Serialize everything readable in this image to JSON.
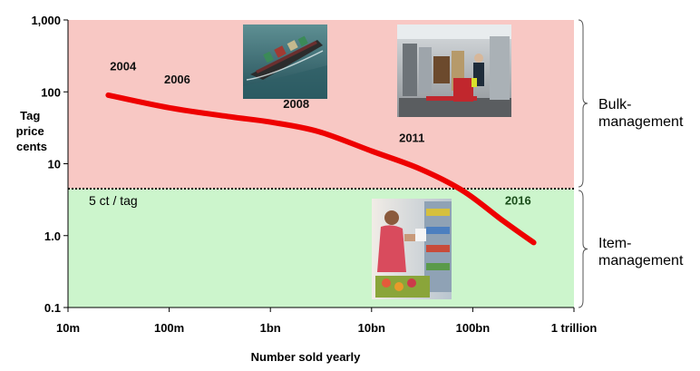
{
  "chart_data": {
    "type": "line",
    "title": "",
    "xlabel": "Number sold yearly",
    "ylabel": [
      "Tag",
      "price",
      "cents"
    ],
    "x_scale": "log",
    "y_scale": "log",
    "xlim": [
      10000000,
      1000000000000
    ],
    "ylim": [
      0.1,
      1000
    ],
    "x_ticks": [
      {
        "value": 10000000,
        "label": "10m"
      },
      {
        "value": 100000000,
        "label": "100m"
      },
      {
        "value": 1000000000,
        "label": "1bn"
      },
      {
        "value": 10000000000,
        "label": "10bn"
      },
      {
        "value": 100000000000,
        "label": "100bn"
      },
      {
        "value": 1000000000000,
        "label": "1 trillion"
      }
    ],
    "y_ticks": [
      {
        "value": 1000,
        "label": "1,000"
      },
      {
        "value": 100,
        "label": "100"
      },
      {
        "value": 10,
        "label": "10"
      },
      {
        "value": 1,
        "label": "1.0"
      },
      {
        "value": 0.1,
        "label": "0.1"
      }
    ],
    "series": [
      {
        "color": "#ee0000",
        "points": [
          {
            "x": 25000000,
            "y": 90
          },
          {
            "x": 100000000,
            "y": 60
          },
          {
            "x": 400000000,
            "y": 45
          },
          {
            "x": 1000000000,
            "y": 38
          },
          {
            "x": 3000000000,
            "y": 28
          },
          {
            "x": 10000000000,
            "y": 15
          },
          {
            "x": 30000000000,
            "y": 8.5
          },
          {
            "x": 80000000000,
            "y": 4.2
          },
          {
            "x": 200000000000,
            "y": 1.6
          },
          {
            "x": 400000000000,
            "y": 0.8
          }
        ]
      }
    ],
    "year_labels": [
      {
        "text": "2004",
        "x": 35000000,
        "y": 200
      },
      {
        "text": "2006",
        "x": 120000000,
        "y": 130
      },
      {
        "text": "2008",
        "x": 1800000000,
        "y": 60
      },
      {
        "text": "2011",
        "x": 25000000000,
        "y": 20
      },
      {
        "text": "2016",
        "x": 280000000000,
        "y": 2.7,
        "color": "#1a4d1a"
      }
    ],
    "threshold": {
      "value": 4.5,
      "label": "5 ct / tag"
    },
    "regions": [
      {
        "label": [
          "Bulk-",
          "management"
        ],
        "from": 4.5,
        "to": 1000,
        "color": "#f8c8c4"
      },
      {
        "label": [
          "Item-",
          "management"
        ],
        "from": 0.1,
        "to": 4.5,
        "color": "#ccf5cc"
      }
    ],
    "images": [
      {
        "name": "container-ship-photo"
      },
      {
        "name": "warehouse-forklift-photo"
      },
      {
        "name": "shopper-supermarket-photo"
      }
    ],
    "grid": false,
    "legend": "none"
  }
}
